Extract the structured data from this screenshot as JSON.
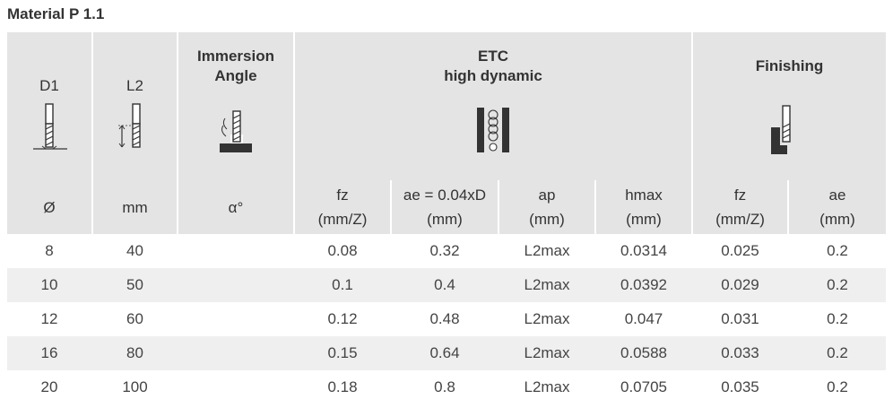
{
  "title": "Material P 1.1",
  "headers": {
    "d1": "D1",
    "l2": "L2",
    "immersion_line1": "Immersion",
    "immersion_line2": "Angle",
    "etc_line1": "ETC",
    "etc_line2": "high dynamic",
    "finishing": "Finishing"
  },
  "units": {
    "d1": "Ø",
    "l2": "mm",
    "angle": "α°",
    "etc_fz_name": "fz",
    "etc_fz_unit": "(mm/Z)",
    "etc_ae_name": "ae = 0.04xD",
    "etc_ae_unit": "(mm)",
    "etc_ap_name": "ap",
    "etc_ap_unit": "(mm)",
    "etc_hmax_name": "hmax",
    "etc_hmax_unit": "(mm)",
    "fin_fz_name": "fz",
    "fin_fz_unit": "(mm/Z)",
    "fin_ae_name": "ae",
    "fin_ae_unit": "(mm)"
  },
  "rows": [
    {
      "d1": "8",
      "l2": "40",
      "angle": "",
      "etc_fz": "0.08",
      "etc_ae": "0.32",
      "etc_ap": "L2max",
      "etc_hmax": "0.0314",
      "fin_fz": "0.025",
      "fin_ae": "0.2"
    },
    {
      "d1": "10",
      "l2": "50",
      "angle": "",
      "etc_fz": "0.1",
      "etc_ae": "0.4",
      "etc_ap": "L2max",
      "etc_hmax": "0.0392",
      "fin_fz": "0.029",
      "fin_ae": "0.2"
    },
    {
      "d1": "12",
      "l2": "60",
      "angle": "",
      "etc_fz": "0.12",
      "etc_ae": "0.48",
      "etc_ap": "L2max",
      "etc_hmax": "0.047",
      "fin_fz": "0.031",
      "fin_ae": "0.2"
    },
    {
      "d1": "16",
      "l2": "80",
      "angle": "",
      "etc_fz": "0.15",
      "etc_ae": "0.64",
      "etc_ap": "L2max",
      "etc_hmax": "0.0588",
      "fin_fz": "0.033",
      "fin_ae": "0.2"
    },
    {
      "d1": "20",
      "l2": "100",
      "angle": "",
      "etc_fz": "0.18",
      "etc_ae": "0.8",
      "etc_ap": "L2max",
      "etc_hmax": "0.0705",
      "fin_fz": "0.035",
      "fin_ae": "0.2"
    }
  ],
  "icons": {
    "d1": "end-mill-diameter-icon",
    "l2": "end-mill-length-icon",
    "immersion": "immersion-angle-icon",
    "etc": "trochoidal-milling-icon",
    "finishing": "finishing-icon"
  }
}
